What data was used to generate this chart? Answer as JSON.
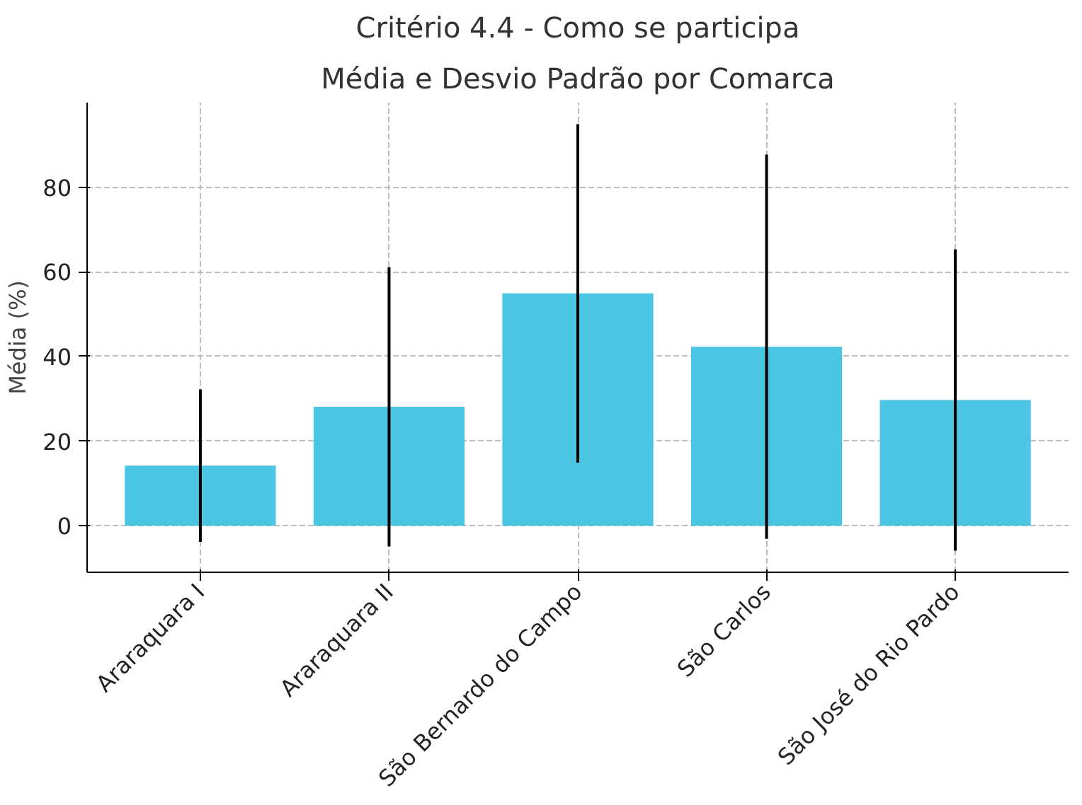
{
  "chart_data": {
    "type": "bar",
    "title": "Critério 4.4 - Como se participa",
    "subtitle": "Média e Desvio Padrão por Comarca",
    "ylabel": "Média (%)",
    "categories": [
      "Araraquara I",
      "Araraquara II",
      "São Bernardo do Campo",
      "São Carlos",
      "São José do Rio Pardo"
    ],
    "values": [
      14.2,
      28.1,
      54.9,
      42.3,
      29.7
    ],
    "errors": [
      18,
      33,
      40,
      45.4,
      35.6
    ],
    "color": "#4ac6e2",
    "ylim": [
      -11,
      100
    ],
    "yticks": [
      0,
      20,
      40,
      60,
      80
    ],
    "grid": true
  }
}
